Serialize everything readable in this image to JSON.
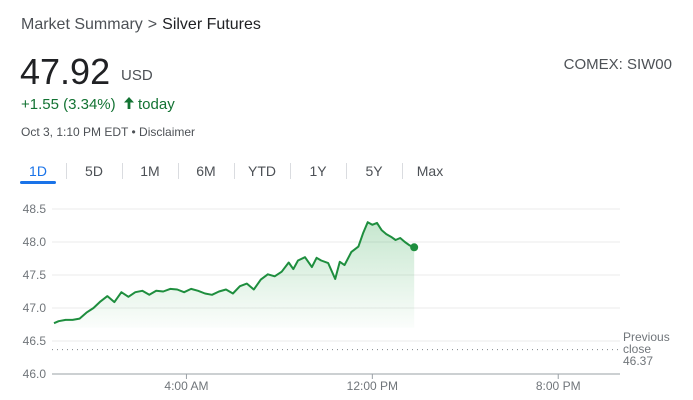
{
  "breadcrumb": {
    "root": "Market Summary",
    "separator": ">",
    "current": "Silver Futures"
  },
  "quote": {
    "price": "47.92",
    "currency": "USD",
    "exchange": "COMEX: SIW00",
    "change": "+1.55 (3.34%)",
    "change_suffix": "today",
    "timestamp": "Oct 3, 1:10 PM EDT",
    "bullet": "•",
    "disclaimer": "Disclaimer"
  },
  "tabs": [
    "1D",
    "5D",
    "1M",
    "6M",
    "YTD",
    "1Y",
    "5Y",
    "Max"
  ],
  "active_tab": "1D",
  "colors": {
    "line": "#1e8e3e",
    "fill": "#34a853",
    "accent": "#1a73e8"
  },
  "chart_data": {
    "type": "line",
    "y_ticks": [
      "48.5",
      "48.0",
      "47.5",
      "47.0",
      "46.5",
      "46.0"
    ],
    "x_ticks": [
      "4:00 AM",
      "12:00 PM",
      "8:00 PM"
    ],
    "x_tick_hours": [
      4,
      12,
      20
    ],
    "xlim_hours": [
      -1.7,
      22.4
    ],
    "ylim": [
      46.0,
      48.5
    ],
    "previous_close": 46.37,
    "previous_close_label": [
      "Previous",
      "close",
      "46.37"
    ],
    "grid": true,
    "series": [
      {
        "x": [
          -1.7,
          -1.5,
          -1.2,
          -0.9,
          -0.6,
          -0.3,
          0.0,
          0.3,
          0.6,
          0.9,
          1.2,
          1.5,
          1.8,
          2.1,
          2.4,
          2.7,
          3.0,
          3.3,
          3.6,
          3.9,
          4.2,
          4.5,
          4.8,
          5.1,
          5.4,
          5.7,
          6.0,
          6.3,
          6.6,
          6.9,
          7.2,
          7.5,
          7.8,
          8.1,
          8.4,
          8.6,
          8.8,
          9.1,
          9.4,
          9.6,
          9.8,
          10.1,
          10.4,
          10.6,
          10.8,
          11.1,
          11.4,
          11.6,
          11.8,
          12.0,
          12.2,
          12.4,
          12.6,
          12.8,
          13.0,
          13.2,
          13.4,
          13.6,
          13.8
        ],
        "y": [
          46.77,
          46.8,
          46.82,
          46.82,
          46.84,
          46.93,
          47.0,
          47.1,
          47.18,
          47.09,
          47.24,
          47.17,
          47.24,
          47.26,
          47.2,
          47.26,
          47.25,
          47.29,
          47.28,
          47.24,
          47.29,
          47.26,
          47.22,
          47.2,
          47.25,
          47.28,
          47.22,
          47.33,
          47.37,
          47.28,
          47.43,
          47.51,
          47.48,
          47.55,
          47.69,
          47.59,
          47.72,
          47.77,
          47.62,
          47.76,
          47.72,
          47.68,
          47.44,
          47.7,
          47.65,
          47.85,
          47.93,
          48.13,
          48.3,
          48.26,
          48.29,
          48.18,
          48.12,
          48.08,
          48.03,
          48.06,
          48.0,
          47.95,
          47.92
        ]
      }
    ]
  }
}
